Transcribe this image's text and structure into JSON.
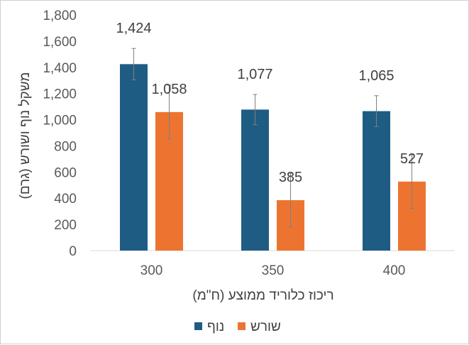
{
  "chart_data": {
    "type": "bar",
    "title": "",
    "xlabel": "ריכוז כלוריד ממוצע (ח\"מ)",
    "ylabel": "משקל נוף ושורש (גרם)",
    "ylim": [
      0,
      1800
    ],
    "ytick_step": 200,
    "yticks": [
      "0",
      "200",
      "400",
      "600",
      "800",
      "1,000",
      "1,200",
      "1,400",
      "1,600",
      "1,800"
    ],
    "categories": [
      "300",
      "350",
      "400"
    ],
    "grid": false,
    "legend_position": "bottom",
    "series": [
      {
        "name": "נוף",
        "color": "#1f5c84",
        "values": [
          1424,
          1077,
          1065
        ],
        "labels": [
          "1,424",
          "1,077",
          "1,065"
        ],
        "errors": [
          120,
          115,
          118
        ]
      },
      {
        "name": "שורש",
        "color": "#ed7430",
        "values": [
          1058,
          385,
          527
        ],
        "labels": [
          "1,058",
          "385",
          "527"
        ],
        "errors": [
          205,
          205,
          205
        ]
      }
    ]
  }
}
